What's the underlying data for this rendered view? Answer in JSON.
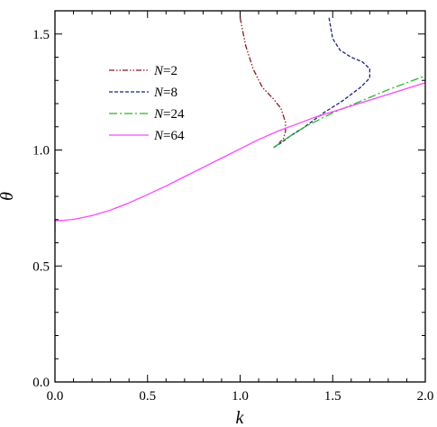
{
  "chart_data": {
    "type": "line",
    "xlabel": "k",
    "ylabel": "θ",
    "xlim": [
      0.0,
      2.0
    ],
    "ylim": [
      0.0,
      1.6
    ],
    "x_ticks": [
      "0.0",
      "0.5",
      "1.0",
      "1.5",
      "2.0"
    ],
    "y_ticks": [
      "0.0",
      "0.5",
      "1.0",
      "1.5"
    ],
    "grid": false,
    "legend_position": "upper-left",
    "series": [
      {
        "name": "N=2",
        "name_italic": "N",
        "name_rest": "=2",
        "color": "#8b1a1a",
        "style": "dash-dot-dot",
        "x": [
          1.0,
          1.03,
          1.07,
          1.12,
          1.18,
          1.22,
          1.245,
          1.245,
          1.235,
          1.21
        ],
        "y": [
          1.57,
          1.45,
          1.35,
          1.27,
          1.22,
          1.18,
          1.12,
          1.08,
          1.05,
          1.03
        ]
      },
      {
        "name": "N=8",
        "name_italic": "N",
        "name_rest": "=8",
        "color": "#1a237e",
        "style": "dashed",
        "x": [
          1.48,
          1.5,
          1.54,
          1.6,
          1.66,
          1.7,
          1.7,
          1.65,
          1.55,
          1.45,
          1.35,
          1.27,
          1.22,
          1.18
        ],
        "y": [
          1.57,
          1.48,
          1.43,
          1.4,
          1.38,
          1.35,
          1.31,
          1.27,
          1.21,
          1.16,
          1.1,
          1.06,
          1.03,
          1.01
        ]
      },
      {
        "name": "N=24",
        "name_italic": "N",
        "name_rest": "=24",
        "color": "#22bb22",
        "style": "dash-dot",
        "x": [
          1.18,
          1.25,
          1.35,
          1.5,
          1.65,
          1.8,
          1.9,
          2.0
        ],
        "y": [
          1.01,
          1.05,
          1.1,
          1.16,
          1.21,
          1.26,
          1.29,
          1.32
        ]
      },
      {
        "name": "N=64",
        "name_italic": "N",
        "name_rest": "=64",
        "color": "#ff44ff",
        "style": "solid",
        "x": [
          0.0,
          0.0,
          0.005,
          0.05,
          0.1,
          0.2,
          0.3,
          0.4,
          0.5,
          0.6,
          0.7,
          0.8,
          0.9,
          1.0,
          1.1,
          1.2,
          1.3,
          1.4,
          1.5,
          1.6,
          1.7,
          1.8,
          1.9,
          2.0
        ],
        "y": [
          0.65,
          0.69,
          0.695,
          0.697,
          0.701,
          0.717,
          0.741,
          0.772,
          0.808,
          0.845,
          0.885,
          0.925,
          0.965,
          1.005,
          1.045,
          1.08,
          1.11,
          1.14,
          1.165,
          1.19,
          1.215,
          1.24,
          1.265,
          1.29
        ]
      }
    ]
  }
}
